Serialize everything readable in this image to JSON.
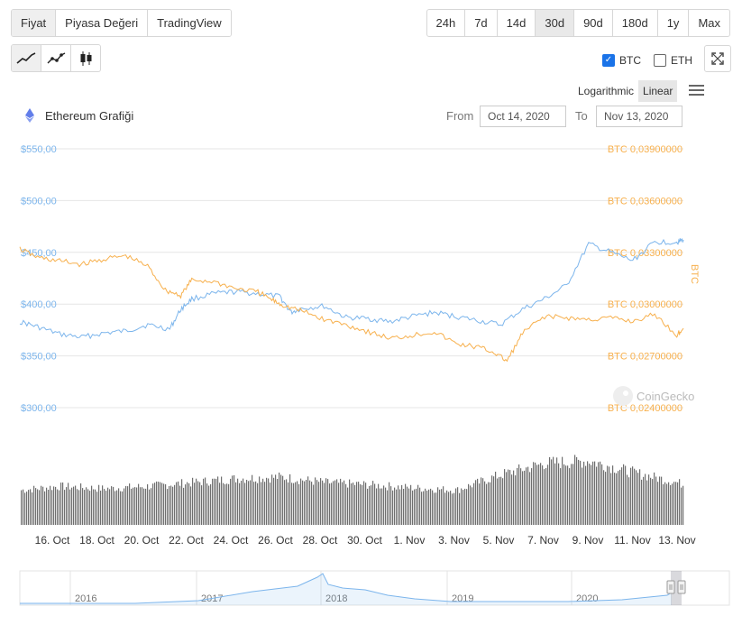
{
  "tabs": [
    {
      "label": "Fiyat",
      "active": true
    },
    {
      "label": "Piyasa Değeri",
      "active": false
    },
    {
      "label": "TradingView",
      "active": false
    }
  ],
  "ranges": [
    {
      "label": "24h",
      "active": false
    },
    {
      "label": "7d",
      "active": false
    },
    {
      "label": "14d",
      "active": false
    },
    {
      "label": "30d",
      "active": true
    },
    {
      "label": "90d",
      "active": false
    },
    {
      "label": "180d",
      "active": false
    },
    {
      "label": "1y",
      "active": false
    },
    {
      "label": "Max",
      "active": false
    }
  ],
  "chart_types": [
    {
      "icon": "line-chart-icon",
      "active": true
    },
    {
      "icon": "line-dots-chart-icon",
      "active": false
    },
    {
      "icon": "candlestick-icon",
      "active": false
    }
  ],
  "compare": [
    {
      "label": "BTC",
      "checked": true
    },
    {
      "label": "ETH",
      "checked": false
    }
  ],
  "scale": {
    "logarithmic": "Logarithmic",
    "linear": "Linear",
    "active": "linear"
  },
  "header": {
    "title": "Ethereum Grafiği",
    "from_label": "From",
    "from_value": "Oct 14, 2020",
    "to_label": "To",
    "to_value": "Nov 13, 2020"
  },
  "watermark": "CoinGecko",
  "colors": {
    "usd": "#7cb5ec",
    "btc": "#f7b04d",
    "volume": "#6f6f6f",
    "navigator": "#7cb5ec"
  },
  "chart_data": {
    "type": "line",
    "x_tick_labels": [
      "16. Oct",
      "18. Oct",
      "20. Oct",
      "22. Oct",
      "24. Oct",
      "26. Oct",
      "28. Oct",
      "30. Oct",
      "1. Nov",
      "3. Nov",
      "5. Nov",
      "7. Nov",
      "9. Nov",
      "11. Nov",
      "13. Nov"
    ],
    "y_left_ticks": [
      "$550,00",
      "$500,00",
      "$450,00",
      "$400,00",
      "$350,00",
      "$300,00"
    ],
    "y_left_range": [
      300,
      550
    ],
    "y_right_ticks": [
      "BTC 0,03900000",
      "BTC 0,03600000",
      "BTC 0,03300000",
      "BTC 0,03000000",
      "BTC 0,02700000",
      "BTC 0,02400000"
    ],
    "y_right_range": [
      0.024,
      0.039
    ],
    "y_right_label": "BTC",
    "x_range_days": [
      14.2,
      44.3
    ],
    "series": [
      {
        "name": "USD",
        "axis": "left",
        "points": [
          [
            14.2,
            383
          ],
          [
            15,
            378
          ],
          [
            16,
            371
          ],
          [
            17,
            368
          ],
          [
            18,
            372
          ],
          [
            19,
            374
          ],
          [
            20,
            380
          ],
          [
            21,
            376
          ],
          [
            21.5,
            395
          ],
          [
            22,
            405
          ],
          [
            23,
            410
          ],
          [
            24,
            412
          ],
          [
            25,
            410
          ],
          [
            26,
            407
          ],
          [
            26.5,
            392
          ],
          [
            27,
            396
          ],
          [
            28,
            398
          ],
          [
            29,
            387
          ],
          [
            30,
            386
          ],
          [
            31,
            383
          ],
          [
            32,
            388
          ],
          [
            33,
            392
          ],
          [
            34,
            388
          ],
          [
            35,
            384
          ],
          [
            36,
            380
          ],
          [
            37,
            395
          ],
          [
            38,
            405
          ],
          [
            39,
            418
          ],
          [
            40,
            458
          ],
          [
            41,
            450
          ],
          [
            42,
            442
          ],
          [
            43,
            460
          ],
          [
            44,
            460
          ],
          [
            44.3,
            462
          ]
        ]
      },
      {
        "name": "BTC",
        "axis": "right",
        "points": [
          [
            14.2,
            0.0332
          ],
          [
            15,
            0.0327
          ],
          [
            16,
            0.0325
          ],
          [
            17,
            0.0323
          ],
          [
            18,
            0.0326
          ],
          [
            19,
            0.0328
          ],
          [
            20,
            0.0322
          ],
          [
            20.8,
            0.0308
          ],
          [
            21.5,
            0.0305
          ],
          [
            22,
            0.0314
          ],
          [
            23,
            0.0313
          ],
          [
            24,
            0.0309
          ],
          [
            25,
            0.0307
          ],
          [
            25.7,
            0.0302
          ],
          [
            26.2,
            0.0299
          ],
          [
            27,
            0.0296
          ],
          [
            28,
            0.0291
          ],
          [
            29,
            0.0288
          ],
          [
            30,
            0.0284
          ],
          [
            31,
            0.028
          ],
          [
            32,
            0.0282
          ],
          [
            33,
            0.0284
          ],
          [
            34,
            0.0277
          ],
          [
            35,
            0.0275
          ],
          [
            35.7,
            0.0272
          ],
          [
            36.3,
            0.0267
          ],
          [
            37,
            0.0283
          ],
          [
            38,
            0.0293
          ],
          [
            39,
            0.0292
          ],
          [
            40,
            0.0291
          ],
          [
            41,
            0.0292
          ],
          [
            42,
            0.029
          ],
          [
            43,
            0.0294
          ],
          [
            44,
            0.0282
          ],
          [
            44.3,
            0.0286
          ]
        ]
      }
    ],
    "volume_envelope": [
      [
        14.2,
        0.45
      ],
      [
        16,
        0.5
      ],
      [
        18,
        0.47
      ],
      [
        20,
        0.5
      ],
      [
        22,
        0.55
      ],
      [
        24,
        0.6
      ],
      [
        26,
        0.62
      ],
      [
        28,
        0.55
      ],
      [
        30,
        0.52
      ],
      [
        32,
        0.48
      ],
      [
        34,
        0.45
      ],
      [
        36,
        0.65
      ],
      [
        38,
        0.8
      ],
      [
        40,
        0.83
      ],
      [
        42,
        0.68
      ],
      [
        44,
        0.55
      ],
      [
        44.3,
        0.52
      ]
    ],
    "navigator_years": [
      "2016",
      "2017",
      "2018",
      "2019",
      "2020"
    ],
    "grid": true
  }
}
